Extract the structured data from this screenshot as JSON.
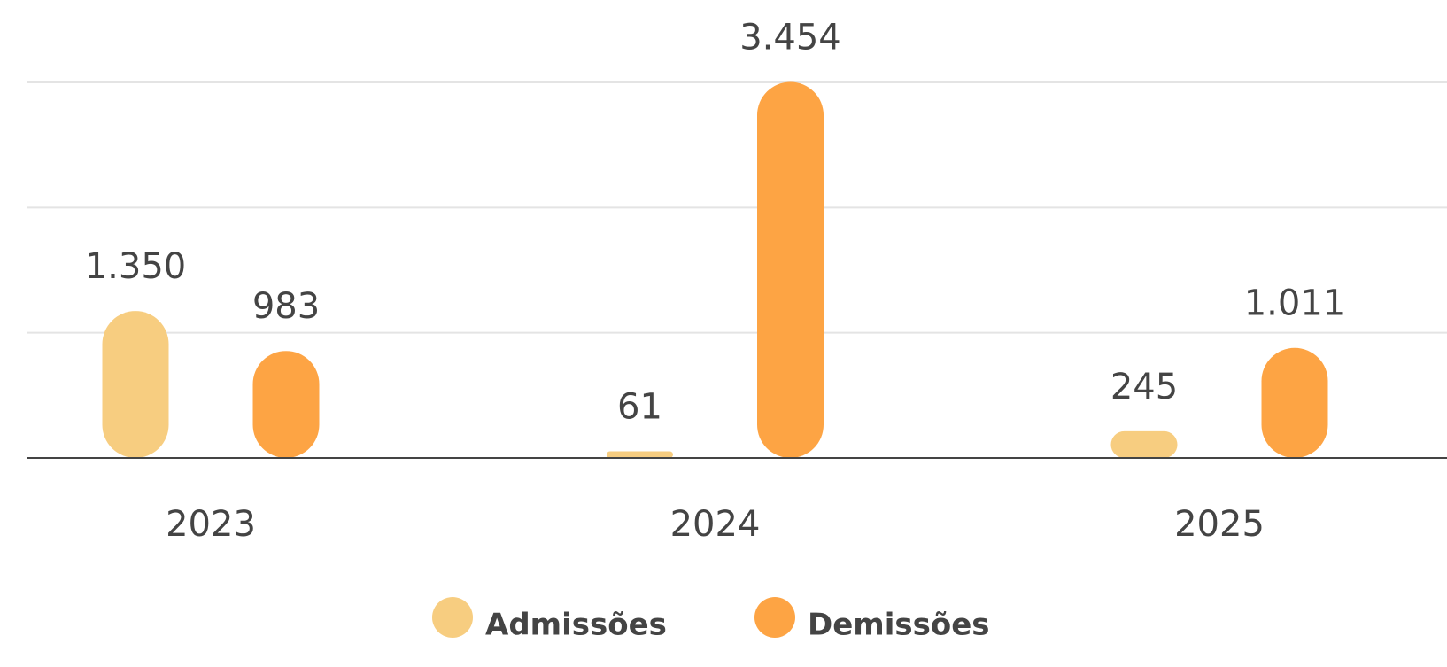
{
  "chart_data": {
    "type": "bar",
    "categories": [
      "2023",
      "2024",
      "2025"
    ],
    "series": [
      {
        "name": "Admissões",
        "color": "#f7cd80",
        "values": [
          1350,
          61,
          245
        ],
        "value_labels": [
          "1.350",
          "61",
          "245"
        ]
      },
      {
        "name": "Demissões",
        "color": "#fda444",
        "values": [
          983,
          3454,
          1011
        ],
        "value_labels": [
          "983",
          "3.454",
          "1.011"
        ]
      }
    ],
    "ylim": [
      0,
      3450
    ],
    "yticks": [
      0,
      1150,
      2300,
      3450
    ],
    "grid": true,
    "legend": "bottom"
  }
}
